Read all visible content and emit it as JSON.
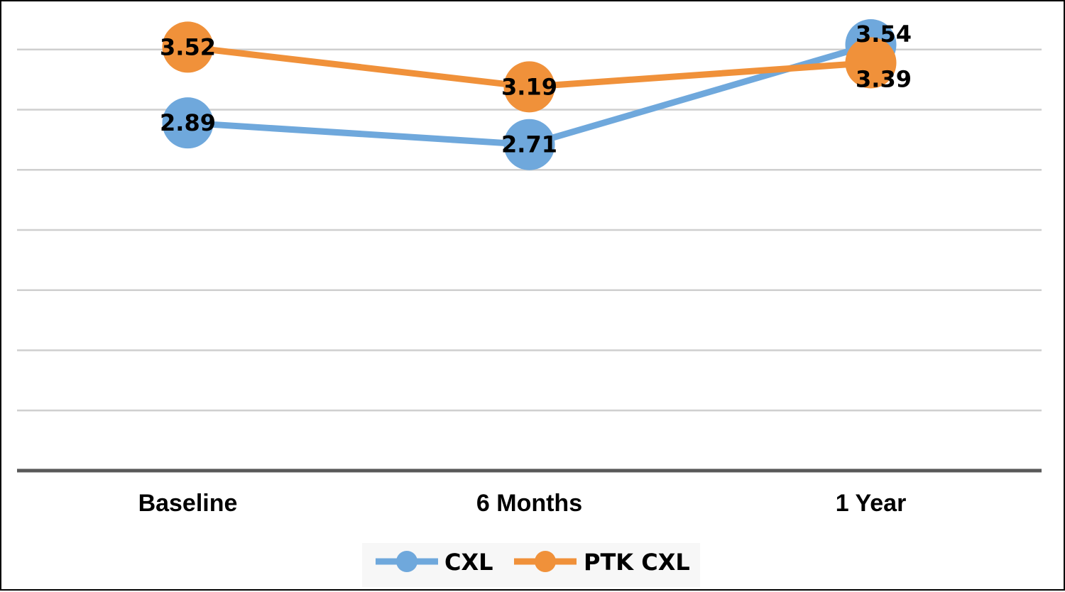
{
  "chart_data": {
    "type": "line",
    "title": "",
    "xlabel": "",
    "ylabel": "",
    "categories": [
      "Baseline",
      "6 Months",
      "1 Year"
    ],
    "ylim": [
      0,
      3.9
    ],
    "y_axis_labels_shown": false,
    "grid": true,
    "legend_position": "bottom",
    "series": [
      {
        "name": "CXL",
        "values": [
          2.89,
          2.71,
          3.54
        ],
        "labels": [
          "2.89",
          "2.71",
          "3.54"
        ],
        "color": "#6FA8DC"
      },
      {
        "name": "PTK CXL",
        "values": [
          3.52,
          3.19,
          3.39
        ],
        "labels": [
          "3.52",
          "3.19",
          "3.39"
        ],
        "color": "#F0913A"
      }
    ]
  }
}
